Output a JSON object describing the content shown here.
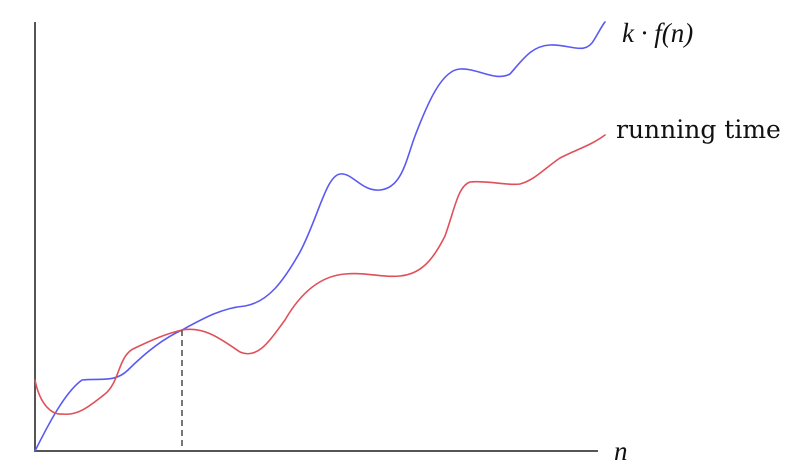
{
  "labels": {
    "upper_curve": "k · f(n)",
    "lower_curve": "running time",
    "x_axis": "n"
  },
  "colors": {
    "upper_curve": "#5a5af2",
    "lower_curve": "#e0505a",
    "axis": "#555555",
    "crossover_marker": "#555555"
  },
  "diagram": {
    "type": "concept-line-plot",
    "axes_ticks": "none",
    "crossover_marker": "dashed-vertical"
  }
}
